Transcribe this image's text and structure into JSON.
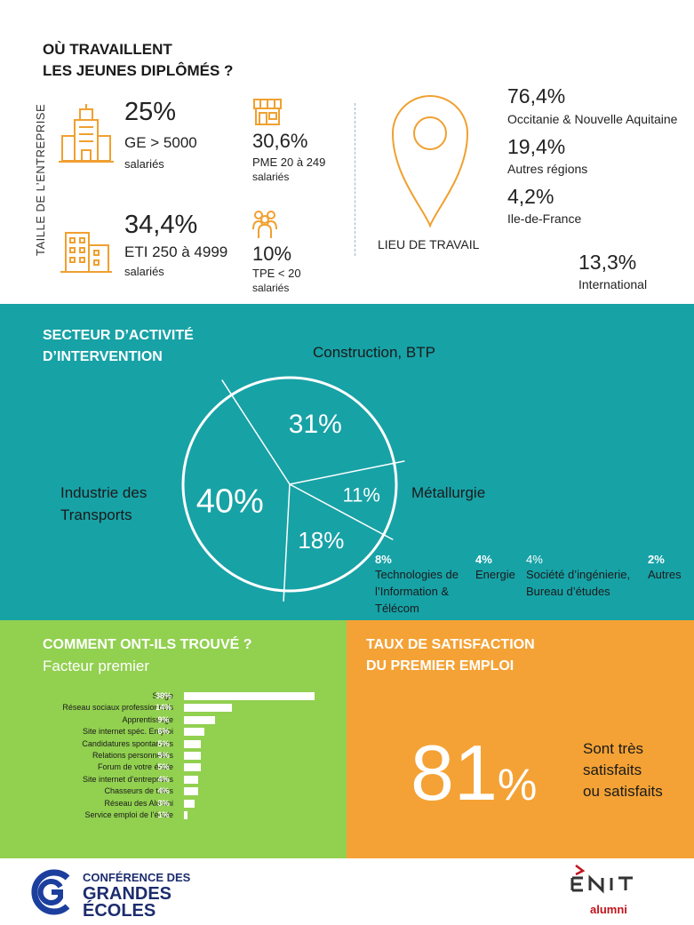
{
  "section_workplace": {
    "title_line1": "OÙ TRAVAILLENT",
    "title_line2": "LES JEUNES DIPLÔMÉS ?",
    "side_label": "TAILLE DE L’ENTREPRISE",
    "company_sizes": [
      {
        "percent": "25%",
        "label": "GE > 5000",
        "unit": "salariés",
        "icon": "office-tower-icon"
      },
      {
        "percent": "30,6%",
        "label": "PME 20 à 249",
        "unit": "salariés",
        "icon": "shop-storefront-icon"
      },
      {
        "percent": "34,4%",
        "label": "ETI 250 à 4999",
        "unit": "salariés",
        "icon": "office-buildings-icon"
      },
      {
        "percent": "10%",
        "label": "TPE < 20",
        "unit": "salariés",
        "icon": "people-group-icon"
      }
    ],
    "location_label": "LIEU DE TRAVAIL",
    "location_icon": "map-pin-icon",
    "regions": [
      {
        "percent": "76,4%",
        "name": "Occitanie & Nouvelle Aquitaine"
      },
      {
        "percent": "19,4%",
        "name": "Autres régions"
      },
      {
        "percent": "4,2%",
        "name": "Ile-de-France"
      },
      {
        "percent": "13,3%",
        "name": "International"
      }
    ]
  },
  "section_sector": {
    "title_line1": "SECTEUR D’ACTIVITÉ",
    "title_line2": "D’INTERVENTION",
    "pie_labels": {
      "construction": "Construction, BTP",
      "metallurgie": "Métallurgie",
      "transport_line1": "Industrie des",
      "transport_line2": "Transports"
    },
    "pie_slice_labels": {
      "construction": "31%",
      "metallurgie": "11%",
      "autre": "18%",
      "transport": "40%"
    },
    "small_categories": [
      {
        "percent": "8%",
        "line1": "Technologies de",
        "line2": "l’Information &",
        "line3": "Télécom"
      },
      {
        "percent": "4%",
        "line1": "Energie",
        "line2": "",
        "line3": ""
      },
      {
        "percent": "4%",
        "line1": "Société d’ingénierie,",
        "line2": "Bureau d’études",
        "line3": ""
      },
      {
        "percent": "2%",
        "line1": "Autres",
        "line2": "",
        "line3": ""
      }
    ]
  },
  "section_found": {
    "title": "COMMENT ONT-ILS TROUVÉ ?",
    "subtitle": "Facteur premier"
  },
  "section_satisfaction": {
    "title_line1": "TAUX DE SATISFACTION",
    "title_line2": "DU PREMIER EMPLOI",
    "big_number": "81",
    "big_sign": "%",
    "text_line1": "Sont très",
    "text_line2": "satisfaits",
    "text_line3": "ou satisfaits"
  },
  "footer": {
    "cge_line1": "CONFÉRENCE DES",
    "cge_line2": "GRANDES",
    "cge_line3": "ÉCOLES",
    "enit_text": "ENIT",
    "alumni": "alumni",
    "brand_colors": {
      "cge": "#1c2c6e",
      "enit_red": "#c0141c"
    }
  },
  "colors": {
    "teal": "#17A2A6",
    "green": "#92D050",
    "orange": "#F4A235",
    "icon_orange": "#F0A030"
  },
  "chart_data": [
    {
      "type": "pie",
      "title": "",
      "categories": [
        "Construction, BTP",
        "Métallurgie",
        "",
        "Industrie des Transports"
      ],
      "values": [
        31,
        11,
        18,
        40
      ]
    },
    {
      "type": "bar",
      "orientation": "horizontal",
      "title": "",
      "categories": [
        "Stage",
        "Réseau sociaux professionnels",
        "Apprentissage",
        "Site internet spéc. Emploi",
        "Candidatures spontanées",
        "Relations personnelles",
        "Forum de votre école",
        "Site internet d’entreprises",
        "Chasseurs de têtes",
        "Réseau des Alumni",
        "Service emploi de l’école"
      ],
      "values": [
        38,
        14,
        9,
        6,
        5,
        5,
        5,
        4,
        4,
        3,
        1
      ],
      "value_labels": [
        "38%",
        "14%",
        "9%",
        "6%",
        "5%",
        "5%",
        "5%",
        "4%",
        "4%",
        "3%",
        "1%"
      ],
      "xlim": [
        0,
        40
      ]
    }
  ]
}
